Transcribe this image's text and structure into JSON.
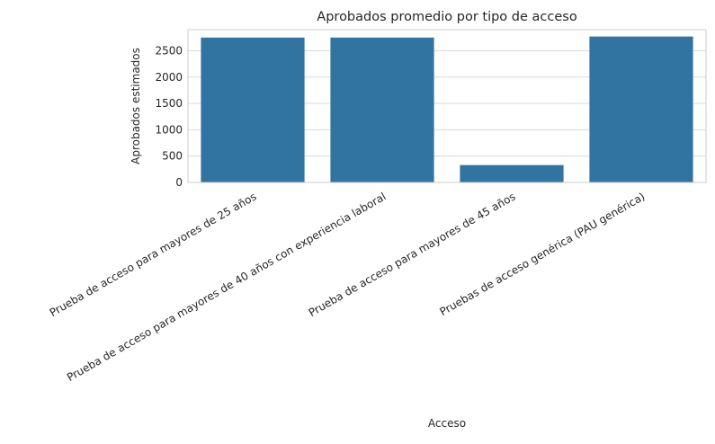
{
  "chart_data": {
    "type": "bar",
    "title": "Aprobados promedio por tipo de acceso",
    "xlabel": "Acceso",
    "ylabel": "Aprobados estimados",
    "categories": [
      "Prueba de acceso para mayores de 25 años",
      "Prueba de acceso para mayores de 40 años con experiencia laboral",
      "Prueba de acceso para mayores de 45 años",
      "Pruebas de acceso genérica (PAU genérica)"
    ],
    "values": [
      2750,
      2750,
      330,
      2770
    ],
    "ylim": [
      0,
      2900
    ],
    "yticks": [
      0,
      500,
      1000,
      1500,
      2000,
      2500
    ],
    "grid": "horizontal",
    "bar_color": "#3274a1",
    "grid_color": "#d9d9d9",
    "spine_color": "#cccccc"
  }
}
